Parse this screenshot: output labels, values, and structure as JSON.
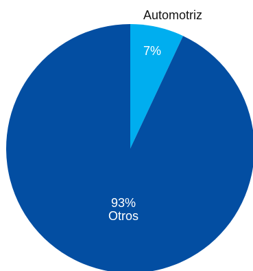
{
  "chart_data": {
    "type": "pie",
    "start_angle_deg": 0,
    "direction": "clockwise",
    "slices": [
      {
        "label": "Automotriz",
        "value": 7,
        "value_label": "7%",
        "color": "#00aeef"
      },
      {
        "label": "Otros",
        "value": 93,
        "value_label": "93%",
        "color": "#034ea2"
      }
    ]
  }
}
